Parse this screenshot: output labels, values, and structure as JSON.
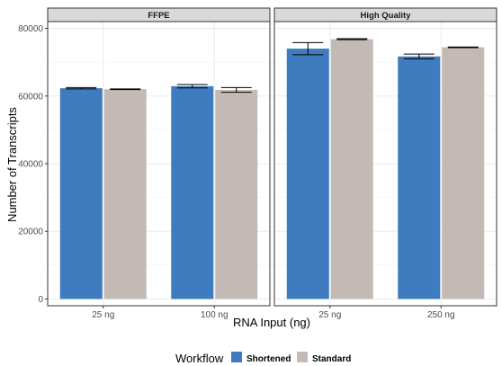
{
  "chart_data": {
    "type": "bar",
    "xlabel": "RNA Input (ng)",
    "ylabel": "Number of Transcripts",
    "ylim": [
      -2000,
      82000
    ],
    "yticks": [
      0,
      20000,
      40000,
      60000,
      80000
    ],
    "grid": true,
    "legend": {
      "title": "Workflow",
      "position": "bottom",
      "entries": [
        "Shortened",
        "Standard"
      ]
    },
    "colors": {
      "Shortened": "#3f7bbf",
      "Standard": "#c4bab5"
    },
    "panels": [
      {
        "title": "FFPE",
        "categories": [
          "25 ng",
          "100 ng"
        ],
        "series": [
          {
            "name": "Shortened",
            "values": [
              62300,
              62900
            ],
            "error": [
              200,
              500
            ]
          },
          {
            "name": "Standard",
            "values": [
              62000,
              61800
            ],
            "error": [
              100,
              700
            ]
          }
        ]
      },
      {
        "title": "High Quality",
        "categories": [
          "25 ng",
          "250 ng"
        ],
        "series": [
          {
            "name": "Shortened",
            "values": [
              74000,
              71700
            ],
            "error": [
              1800,
              700
            ]
          },
          {
            "name": "Standard",
            "values": [
              76800,
              74400
            ],
            "error": [
              150,
              100
            ]
          }
        ]
      }
    ]
  }
}
